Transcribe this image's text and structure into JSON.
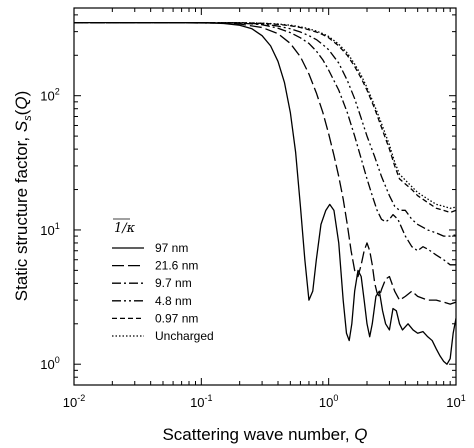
{
  "chart_data": {
    "type": "line",
    "title": "",
    "xlabel": "Scattering wave number, Q",
    "ylabel": "Static structure factor, Ss(Q)",
    "xscale": "log",
    "yscale": "log",
    "xlim": [
      0.01,
      10
    ],
    "ylim": [
      0.7,
      450
    ],
    "x_ticks": [
      0.01,
      0.1,
      1,
      10
    ],
    "x_tick_labels": [
      {
        "base": "10",
        "exp": "-2"
      },
      {
        "base": "10",
        "exp": "-1"
      },
      {
        "base": "10",
        "exp": "0"
      },
      {
        "base": "10",
        "exp": "1"
      }
    ],
    "y_ticks": [
      1,
      10,
      100
    ],
    "y_tick_labels": [
      {
        "base": "10",
        "exp": "0"
      },
      {
        "base": "10",
        "exp": "1"
      },
      {
        "base": "10",
        "exp": "2"
      }
    ],
    "grid": false,
    "legend": {
      "placement": "bottom-left",
      "title": "1/κ"
    },
    "series": [
      {
        "name": "97 nm",
        "style": "solid",
        "points": [
          [
            0.01,
            350
          ],
          [
            0.1,
            350
          ],
          [
            0.15,
            345
          ],
          [
            0.2,
            335
          ],
          [
            0.25,
            315
          ],
          [
            0.3,
            280
          ],
          [
            0.35,
            235
          ],
          [
            0.4,
            180
          ],
          [
            0.45,
            125
          ],
          [
            0.5,
            75
          ],
          [
            0.55,
            38
          ],
          [
            0.6,
            15
          ],
          [
            0.65,
            6
          ],
          [
            0.7,
            3
          ],
          [
            0.75,
            3.5
          ],
          [
            0.8,
            6
          ],
          [
            0.87,
            11
          ],
          [
            0.95,
            14
          ],
          [
            1.02,
            15.5
          ],
          [
            1.1,
            14
          ],
          [
            1.2,
            8
          ],
          [
            1.3,
            3
          ],
          [
            1.38,
            1.7
          ],
          [
            1.45,
            1.5
          ],
          [
            1.52,
            2
          ],
          [
            1.6,
            3.5
          ],
          [
            1.7,
            5
          ],
          [
            1.8,
            4.5
          ],
          [
            1.9,
            3
          ],
          [
            2.0,
            2
          ],
          [
            2.1,
            1.6
          ],
          [
            2.2,
            2
          ],
          [
            2.35,
            3.2
          ],
          [
            2.5,
            3.5
          ],
          [
            2.65,
            2.5
          ],
          [
            2.8,
            2
          ],
          [
            3.0,
            1.8
          ],
          [
            3.2,
            2.6
          ],
          [
            3.4,
            2.5
          ],
          [
            3.6,
            2
          ],
          [
            3.8,
            1.8
          ],
          [
            4.2,
            2
          ],
          [
            4.6,
            1.8
          ],
          [
            5.0,
            1.7
          ],
          [
            5.5,
            1.75
          ],
          [
            6.0,
            1.6
          ],
          [
            6.5,
            1.5
          ],
          [
            7.0,
            1.3
          ],
          [
            7.5,
            1.15
          ],
          [
            8.0,
            1.05
          ],
          [
            8.5,
            1.0
          ],
          [
            9.0,
            1.1
          ],
          [
            9.5,
            1.7
          ],
          [
            10,
            2.2
          ]
        ]
      },
      {
        "name": "21.6 nm",
        "style": "long-dash",
        "points": [
          [
            0.01,
            350
          ],
          [
            0.15,
            348
          ],
          [
            0.2,
            342
          ],
          [
            0.3,
            322
          ],
          [
            0.4,
            290
          ],
          [
            0.5,
            245
          ],
          [
            0.6,
            195
          ],
          [
            0.7,
            145
          ],
          [
            0.8,
            105
          ],
          [
            0.9,
            75
          ],
          [
            1.0,
            52
          ],
          [
            1.1,
            36
          ],
          [
            1.2,
            25
          ],
          [
            1.3,
            17
          ],
          [
            1.4,
            11
          ],
          [
            1.5,
            7
          ],
          [
            1.6,
            5
          ],
          [
            1.7,
            4.5
          ],
          [
            1.8,
            5.5
          ],
          [
            1.9,
            7
          ],
          [
            2.0,
            8
          ],
          [
            2.1,
            7
          ],
          [
            2.2,
            5.5
          ],
          [
            2.3,
            4
          ],
          [
            2.4,
            3.4
          ],
          [
            2.5,
            3.2
          ],
          [
            2.6,
            3.6
          ],
          [
            2.8,
            4.3
          ],
          [
            3.0,
            4.5
          ],
          [
            3.3,
            3.5
          ],
          [
            3.6,
            3.0
          ],
          [
            4.0,
            3.2
          ],
          [
            4.5,
            3.5
          ],
          [
            5.0,
            3.2
          ],
          [
            6.0,
            3.0
          ],
          [
            7.0,
            3.0
          ],
          [
            8.0,
            2.9
          ],
          [
            9.0,
            2.8
          ],
          [
            10,
            2.9
          ]
        ]
      },
      {
        "name": "9.7 nm",
        "style": "dash-dot",
        "points": [
          [
            0.01,
            350
          ],
          [
            0.2,
            348
          ],
          [
            0.3,
            338
          ],
          [
            0.4,
            318
          ],
          [
            0.5,
            295
          ],
          [
            0.6,
            270
          ],
          [
            0.7,
            245
          ],
          [
            0.8,
            215
          ],
          [
            0.9,
            185
          ],
          [
            1.0,
            155
          ],
          [
            1.2,
            110
          ],
          [
            1.4,
            75
          ],
          [
            1.6,
            50
          ],
          [
            1.8,
            34
          ],
          [
            2.0,
            24
          ],
          [
            2.2,
            18
          ],
          [
            2.4,
            14
          ],
          [
            2.6,
            12
          ],
          [
            2.8,
            11.5
          ],
          [
            3.0,
            12
          ],
          [
            3.2,
            13
          ],
          [
            3.5,
            12
          ],
          [
            4.0,
            9
          ],
          [
            4.5,
            7.5
          ],
          [
            5.0,
            7
          ],
          [
            5.5,
            7.5
          ],
          [
            6.0,
            7.2
          ],
          [
            7.0,
            6.5
          ],
          [
            8.0,
            6
          ],
          [
            9.0,
            5.5
          ],
          [
            10,
            5.5
          ]
        ]
      },
      {
        "name": "4.8 nm",
        "style": "dash-dot-dot",
        "points": [
          [
            0.01,
            350
          ],
          [
            0.2,
            349
          ],
          [
            0.3,
            342
          ],
          [
            0.4,
            330
          ],
          [
            0.5,
            315
          ],
          [
            0.6,
            298
          ],
          [
            0.7,
            280
          ],
          [
            0.8,
            262
          ],
          [
            0.9,
            240
          ],
          [
            1.0,
            220
          ],
          [
            1.2,
            175
          ],
          [
            1.4,
            130
          ],
          [
            1.6,
            95
          ],
          [
            1.8,
            68
          ],
          [
            2.0,
            50
          ],
          [
            2.3,
            35
          ],
          [
            2.6,
            25
          ],
          [
            3.0,
            18
          ],
          [
            3.3,
            15
          ],
          [
            3.6,
            14
          ],
          [
            4.0,
            14
          ],
          [
            4.5,
            12
          ],
          [
            5.0,
            11
          ],
          [
            6.0,
            10
          ],
          [
            7.0,
            9.5
          ],
          [
            8.0,
            9
          ],
          [
            9.0,
            9
          ],
          [
            10,
            9.2
          ]
        ]
      },
      {
        "name": "0.97 nm",
        "style": "short-dash",
        "points": [
          [
            0.01,
            350
          ],
          [
            0.2,
            349.5
          ],
          [
            0.3,
            346
          ],
          [
            0.4,
            340
          ],
          [
            0.5,
            332
          ],
          [
            0.6,
            322
          ],
          [
            0.7,
            310
          ],
          [
            0.8,
            298
          ],
          [
            0.9,
            285
          ],
          [
            1.0,
            270
          ],
          [
            1.2,
            235
          ],
          [
            1.4,
            200
          ],
          [
            1.6,
            165
          ],
          [
            1.8,
            135
          ],
          [
            2.0,
            110
          ],
          [
            2.3,
            80
          ],
          [
            2.6,
            58
          ],
          [
            3.0,
            40
          ],
          [
            3.3,
            30
          ],
          [
            3.6,
            24
          ],
          [
            4.0,
            22
          ],
          [
            4.5,
            20
          ],
          [
            5.0,
            18
          ],
          [
            6.0,
            16
          ],
          [
            7.0,
            14.5
          ],
          [
            8.0,
            14
          ],
          [
            9.0,
            13.5
          ],
          [
            10,
            14
          ]
        ]
      },
      {
        "name": "Uncharged",
        "style": "dotted",
        "points": [
          [
            0.01,
            350
          ],
          [
            0.2,
            349.8
          ],
          [
            0.3,
            347
          ],
          [
            0.4,
            342
          ],
          [
            0.5,
            335
          ],
          [
            0.6,
            326
          ],
          [
            0.7,
            315
          ],
          [
            0.8,
            303
          ],
          [
            0.9,
            290
          ],
          [
            1.0,
            276
          ],
          [
            1.2,
            242
          ],
          [
            1.4,
            208
          ],
          [
            1.6,
            172
          ],
          [
            1.8,
            142
          ],
          [
            2.0,
            115
          ],
          [
            2.3,
            84
          ],
          [
            2.6,
            62
          ],
          [
            3.0,
            43
          ],
          [
            3.3,
            32
          ],
          [
            3.6,
            26
          ],
          [
            4.0,
            23.5
          ],
          [
            4.5,
            21
          ],
          [
            5.0,
            19
          ],
          [
            6.0,
            17
          ],
          [
            7.0,
            15.5
          ],
          [
            8.0,
            15
          ],
          [
            9.0,
            14.5
          ],
          [
            10,
            14.8
          ]
        ]
      }
    ]
  }
}
